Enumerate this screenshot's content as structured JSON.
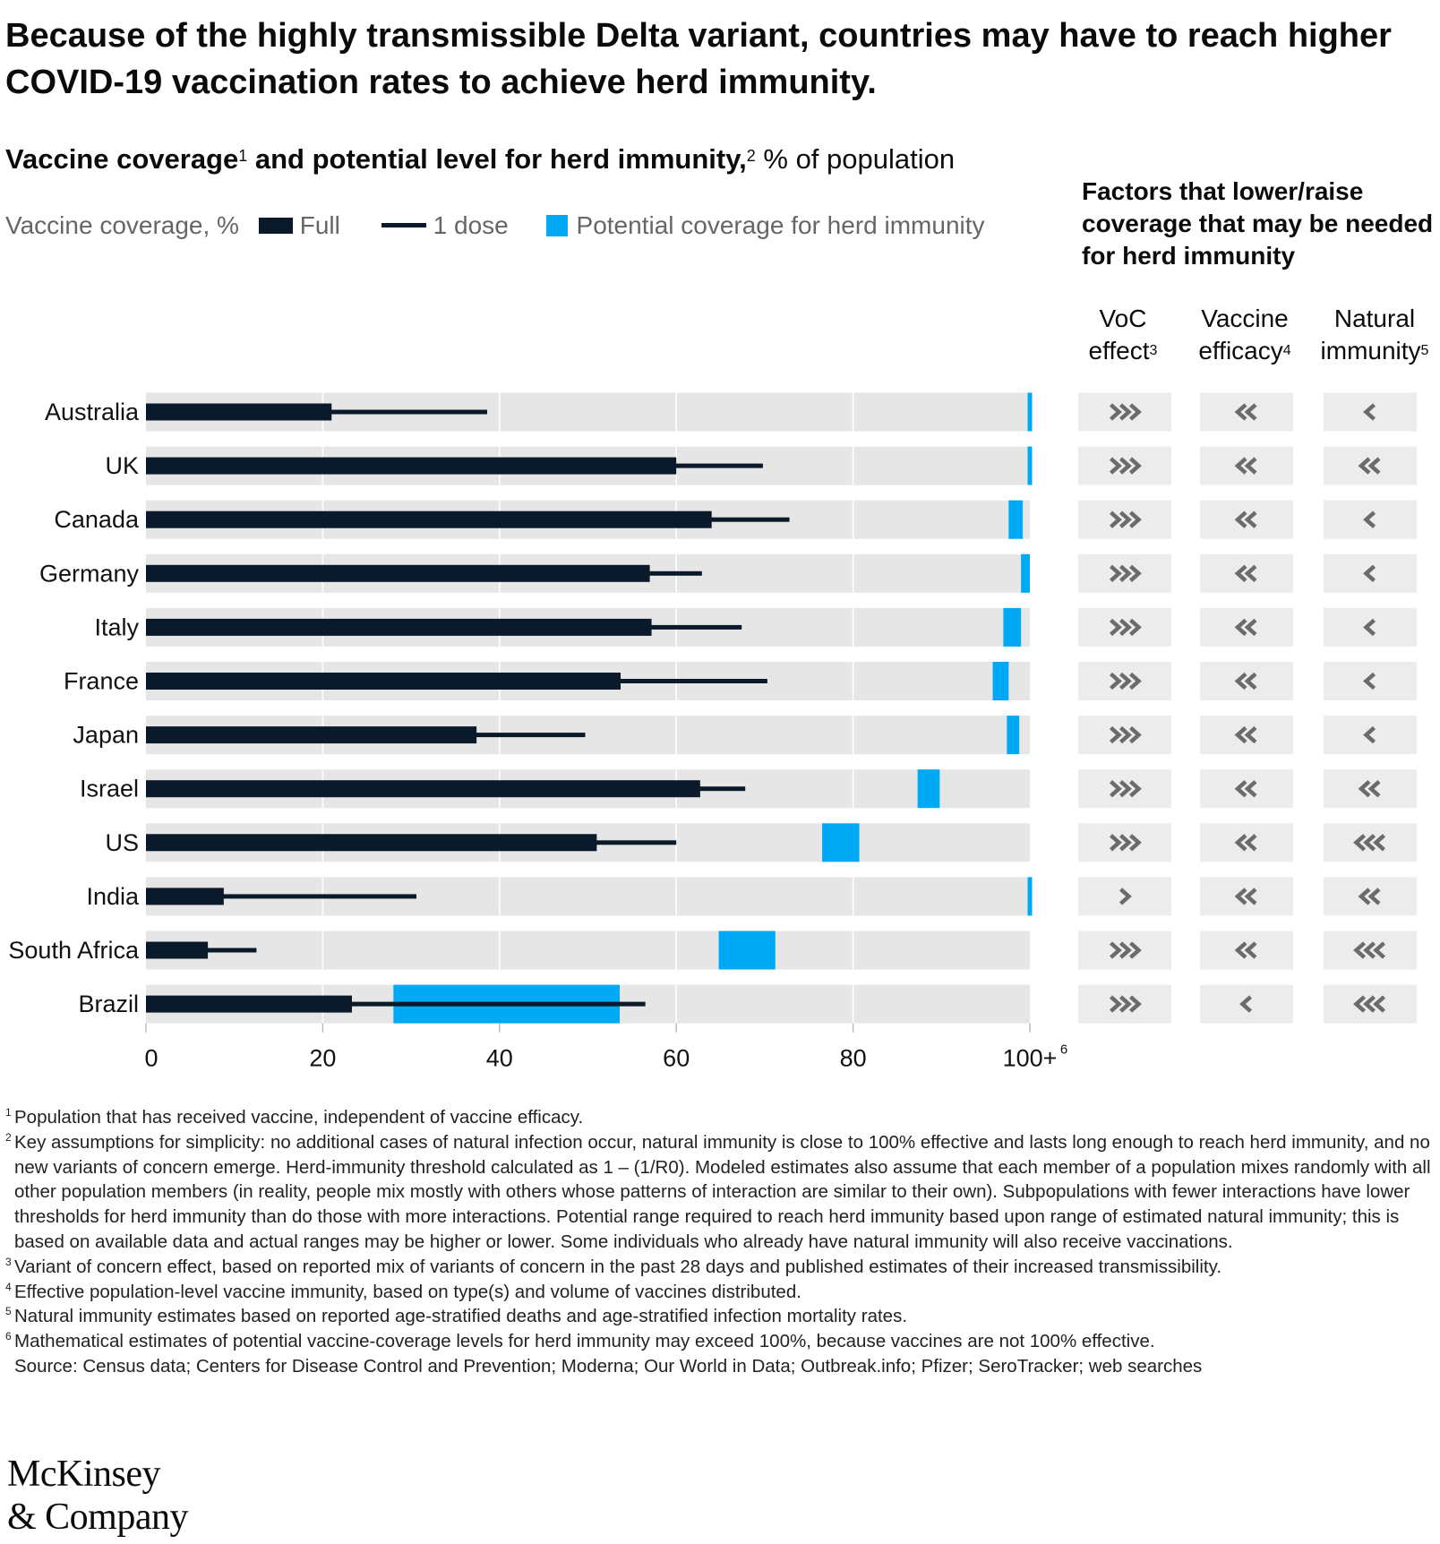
{
  "title": "Because of the highly transmissible Delta variant, countries may have to reach higher COVID-19 vaccination rates to achieve herd immunity.",
  "subtitle": {
    "bold_a": "Vaccine coverage",
    "sup_a": "1",
    "bold_b": " and potential level for herd immunity,",
    "sup_b": "2",
    "rest": " % of population"
  },
  "legend": {
    "label": "Vaccine coverage, %",
    "full": "Full",
    "dose": "1 dose",
    "herd": "Potential coverage for herd immunity"
  },
  "factors": {
    "title": "Factors that lower/raise coverage that may be needed for herd immunity",
    "columns": [
      {
        "label": "VoC",
        "label2": "effect",
        "sup": "3"
      },
      {
        "label": "Vaccine",
        "label2": "efficacy",
        "sup": "4"
      },
      {
        "label": "Natural",
        "label2": "immunity",
        "sup": "5"
      }
    ]
  },
  "colors": {
    "full": "#0b1a2a",
    "dose": "#0b1a2a",
    "herd": "#00a9f4",
    "track": "#e6e6e6",
    "factor_bg": "#ececec",
    "chevron": "#6b6b6b"
  },
  "chart_data": {
    "type": "bar",
    "orientation": "horizontal",
    "categories": [
      "Australia",
      "UK",
      "Canada",
      "Germany",
      "Italy",
      "France",
      "Japan",
      "Israel",
      "US",
      "India",
      "South Africa",
      "Brazil"
    ],
    "series": [
      {
        "name": "Full",
        "values": [
          21,
          60,
          64,
          57,
          57.2,
          53.7,
          37.4,
          62.7,
          51,
          8.8,
          7,
          23.3
        ]
      },
      {
        "name": "1 dose",
        "values": [
          38.6,
          69.8,
          72.8,
          62.9,
          67.4,
          70.3,
          49.7,
          67.8,
          60,
          30.6,
          12.5,
          56.5
        ]
      },
      {
        "name": "Potential coverage for herd immunity",
        "ranges": [
          [
            99.8,
            100.2
          ],
          [
            99.8,
            100.2
          ],
          [
            97.6,
            99.2
          ],
          [
            99,
            100
          ],
          [
            97,
            99
          ],
          [
            95.8,
            97.6
          ],
          [
            97.4,
            98.8
          ],
          [
            87.3,
            89.8
          ],
          [
            76.5,
            80.7
          ],
          [
            99.8,
            100.2
          ],
          [
            64.8,
            71.2
          ],
          [
            28,
            53.6
          ]
        ]
      }
    ],
    "factor_chevrons": {
      "voc_effect": [
        3,
        3,
        3,
        3,
        3,
        3,
        3,
        3,
        3,
        1,
        3,
        3
      ],
      "vaccine_efficacy": [
        -2,
        -2,
        -2,
        -2,
        -2,
        -2,
        -2,
        -2,
        -2,
        -2,
        -2,
        -1
      ],
      "natural_immunity": [
        -1,
        -2,
        -1,
        -1,
        -1,
        -1,
        -1,
        -2,
        -3,
        -2,
        -3,
        -3
      ]
    },
    "x_ticks": [
      "0",
      "20",
      "40",
      "60",
      "80",
      "100+"
    ],
    "x_tick_last_sup": "6",
    "xlim": [
      0,
      100
    ],
    "grid": true
  },
  "footnotes": [
    {
      "sup": "1",
      "text": "Population that has received vaccine, independent of vaccine efficacy."
    },
    {
      "sup": "2",
      "text": "Key assumptions for simplicity: no additional cases of natural infection occur, natural immunity is close to 100% effective and lasts long enough to reach herd immunity, and no new variants of concern emerge. Herd-immunity threshold calculated as 1 – (1/R0). Modeled estimates also assume that each member of a population mixes randomly with all other population members (in reality, people mix mostly with others whose patterns of interaction are similar to their own). Subpopulations with fewer interactions have lower thresholds for herd immunity than do those with more interactions. Potential range required to reach herd immunity based upon range of estimated natural immunity; this is based on available data and actual ranges may be higher or lower. Some individuals who already have natural immunity will also receive vaccinations."
    },
    {
      "sup": "3",
      "text": "Variant of concern effect, based on reported mix of variants of concern in the past 28 days and published estimates of their increased transmissibility."
    },
    {
      "sup": "4",
      "text": "Effective population-level vaccine immunity, based on type(s) and volume of vaccines distributed."
    },
    {
      "sup": "5",
      "text": "Natural immunity estimates based on reported age-stratified deaths and age-stratified infection mortality rates."
    },
    {
      "sup": "6",
      "text": "Mathematical estimates of potential vaccine-coverage levels for herd immunity may exceed 100%, because vaccines are not 100% effective."
    }
  ],
  "source": "Source: Census data; Centers for Disease Control and Prevention; Moderna; Our World in Data; Outbreak.info; Pfizer; SeroTracker; web searches",
  "logo": {
    "line1": "McKinsey",
    "line2": "& Company"
  }
}
